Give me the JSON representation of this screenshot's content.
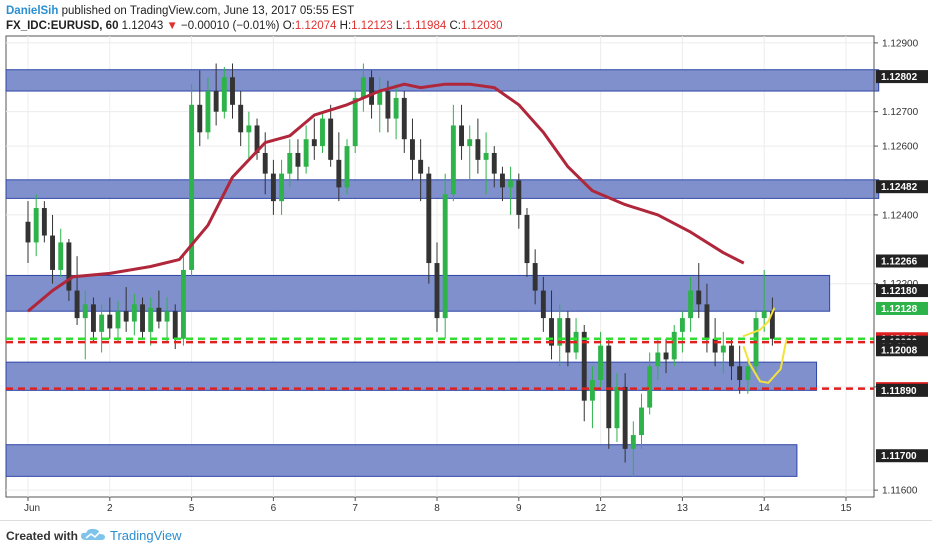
{
  "header": {
    "author": "DanielSih",
    "published": "published on TradingView.com, June 13, 2017 05:55 EST",
    "symbol": "FX_IDC:EURUSD, 60",
    "last": "1.12043",
    "change": "−0.00010 (−0.01%)",
    "o_label": "O:",
    "o_value": "1.12074",
    "h_label": "H:",
    "h_value": "1.12123",
    "l_label": "L:",
    "l_value": "1.11984",
    "c_label": "C:",
    "c_value": "1.12030"
  },
  "footer": {
    "created_with": "Created with",
    "brand": "TradingView"
  },
  "colors": {
    "zone_fill": "#7f90cc",
    "zone_stroke": "#2f46a8",
    "up_candle": "#2db34a",
    "down_candle": "#333333",
    "ma_line": "#b0263a",
    "green_line": "#33dd33",
    "red_line": "#e02020",
    "sketch": "#f3e23a"
  },
  "chart_data": {
    "type": "candlestick",
    "x_labels": [
      "Jun",
      "2",
      "5",
      "6",
      "7",
      "8",
      "9",
      "12",
      "13",
      "14",
      "15"
    ],
    "y_ticks": [
      "1.12900",
      "1.12700",
      "1.12600",
      "1.12400",
      "1.12200",
      "1.11900",
      "1.11600"
    ],
    "ylim": [
      1.1158,
      1.1292
    ],
    "price_tags": [
      {
        "value": 1.12802,
        "label": "1.12802",
        "bg": "#222222",
        "fg": "#ffffff"
      },
      {
        "value": 1.12482,
        "label": "1.12482",
        "bg": "#222222",
        "fg": "#ffffff"
      },
      {
        "value": 1.12266,
        "label": "1.12266",
        "bg": "#222222",
        "fg": "#ffffff"
      },
      {
        "value": 1.1218,
        "label": "1.12180",
        "bg": "#222222",
        "fg": "#ffffff"
      },
      {
        "value": 1.12128,
        "label": "1.12128",
        "bg": "#2db34a",
        "fg": "#ffffff"
      },
      {
        "value": 1.1204,
        "label": "1.12040",
        "bg": "#e02020",
        "fg": "#ffffff"
      },
      {
        "value": 1.1203,
        "label": "1.12030",
        "bg": "#222222",
        "fg": "#ffffff"
      },
      {
        "value": 1.12018,
        "label": "04:48",
        "bg": "#222222",
        "fg": "#ffffff"
      },
      {
        "value": 1.12008,
        "label": "1.12008",
        "bg": "#222222",
        "fg": "#ffffff"
      },
      {
        "value": 1.11895,
        "label": "1.11895",
        "bg": "#e02020",
        "fg": "#ffffff"
      },
      {
        "value": 1.1189,
        "label": "1.11890",
        "bg": "#222222",
        "fg": "#ffffff"
      },
      {
        "value": 1.117,
        "label": "1.11700",
        "bg": "#222222",
        "fg": "#ffffff"
      }
    ],
    "zones": [
      {
        "from": 1.1276,
        "to": 1.12822,
        "x_end_day": 10.4
      },
      {
        "from": 1.12448,
        "to": 1.12502,
        "x_end_day": 10.4
      },
      {
        "from": 1.1212,
        "to": 1.12224,
        "x_end_day": 9.8
      },
      {
        "from": 1.1189,
        "to": 1.11972,
        "x_end_day": 9.64
      },
      {
        "from": 1.1164,
        "to": 1.11732,
        "x_end_day": 9.4
      }
    ],
    "green_dashed_level": 1.1204,
    "red_dashed_levels": [
      1.1203,
      1.11895
    ],
    "ma_points": [
      [
        0,
        1.1212
      ],
      [
        0.3,
        1.1218
      ],
      [
        0.55,
        1.1222
      ],
      [
        1.0,
        1.1223
      ],
      [
        1.5,
        1.1225
      ],
      [
        1.85,
        1.1227
      ],
      [
        2.2,
        1.1237
      ],
      [
        2.5,
        1.1251
      ],
      [
        2.9,
        1.1261
      ],
      [
        3.2,
        1.1263
      ],
      [
        3.5,
        1.1269
      ],
      [
        3.9,
        1.1272
      ],
      [
        4.3,
        1.1276
      ],
      [
        4.6,
        1.1278
      ],
      [
        4.8,
        1.1277
      ],
      [
        5.1,
        1.1278
      ],
      [
        5.4,
        1.1278
      ],
      [
        5.7,
        1.1277
      ],
      [
        6.0,
        1.1272
      ],
      [
        6.3,
        1.1264
      ],
      [
        6.6,
        1.1254
      ],
      [
        6.9,
        1.1247
      ],
      [
        7.3,
        1.1243
      ],
      [
        7.7,
        1.124
      ],
      [
        8.1,
        1.1235
      ],
      [
        8.5,
        1.1229
      ],
      [
        8.75,
        1.1226
      ]
    ],
    "candles": [
      {
        "d": 0.0,
        "o": 1.1238,
        "h": 1.1244,
        "l": 1.1226,
        "c": 1.1232
      },
      {
        "d": 0.1,
        "o": 1.1232,
        "h": 1.1246,
        "l": 1.1228,
        "c": 1.1242
      },
      {
        "d": 0.2,
        "o": 1.1242,
        "h": 1.1244,
        "l": 1.1232,
        "c": 1.1234
      },
      {
        "d": 0.3,
        "o": 1.1234,
        "h": 1.124,
        "l": 1.122,
        "c": 1.1224
      },
      {
        "d": 0.4,
        "o": 1.1224,
        "h": 1.1236,
        "l": 1.1222,
        "c": 1.1232
      },
      {
        "d": 0.5,
        "o": 1.1232,
        "h": 1.1233,
        "l": 1.1215,
        "c": 1.1218
      },
      {
        "d": 0.6,
        "o": 1.1218,
        "h": 1.1228,
        "l": 1.1208,
        "c": 1.121
      },
      {
        "d": 0.7,
        "o": 1.121,
        "h": 1.1218,
        "l": 1.1198,
        "c": 1.1214
      },
      {
        "d": 0.8,
        "o": 1.1214,
        "h": 1.1216,
        "l": 1.1203,
        "c": 1.1206
      },
      {
        "d": 0.9,
        "o": 1.1206,
        "h": 1.1214,
        "l": 1.12,
        "c": 1.1211
      },
      {
        "d": 1.0,
        "o": 1.1211,
        "h": 1.1216,
        "l": 1.1204,
        "c": 1.1207
      },
      {
        "d": 1.1,
        "o": 1.1207,
        "h": 1.1215,
        "l": 1.1203,
        "c": 1.1212
      },
      {
        "d": 1.2,
        "o": 1.1212,
        "h": 1.1219,
        "l": 1.1206,
        "c": 1.1209
      },
      {
        "d": 1.3,
        "o": 1.1209,
        "h": 1.1217,
        "l": 1.1205,
        "c": 1.1214
      },
      {
        "d": 1.4,
        "o": 1.1214,
        "h": 1.1216,
        "l": 1.1204,
        "c": 1.1206
      },
      {
        "d": 1.5,
        "o": 1.1206,
        "h": 1.1216,
        "l": 1.1202,
        "c": 1.1213
      },
      {
        "d": 1.6,
        "o": 1.1213,
        "h": 1.1218,
        "l": 1.1207,
        "c": 1.1209
      },
      {
        "d": 1.7,
        "o": 1.1209,
        "h": 1.1216,
        "l": 1.1203,
        "c": 1.1212
      },
      {
        "d": 1.8,
        "o": 1.1212,
        "h": 1.1214,
        "l": 1.1201,
        "c": 1.1204
      },
      {
        "d": 1.9,
        "o": 1.1204,
        "h": 1.1228,
        "l": 1.1202,
        "c": 1.1224
      },
      {
        "d": 2.0,
        "o": 1.1224,
        "h": 1.1278,
        "l": 1.1222,
        "c": 1.1272
      },
      {
        "d": 2.1,
        "o": 1.1272,
        "h": 1.1282,
        "l": 1.126,
        "c": 1.1264
      },
      {
        "d": 2.2,
        "o": 1.1264,
        "h": 1.128,
        "l": 1.1262,
        "c": 1.1276
      },
      {
        "d": 2.3,
        "o": 1.1276,
        "h": 1.1284,
        "l": 1.1266,
        "c": 1.127
      },
      {
        "d": 2.4,
        "o": 1.127,
        "h": 1.1283,
        "l": 1.1268,
        "c": 1.128
      },
      {
        "d": 2.5,
        "o": 1.128,
        "h": 1.1284,
        "l": 1.1268,
        "c": 1.1272
      },
      {
        "d": 2.6,
        "o": 1.1272,
        "h": 1.1276,
        "l": 1.126,
        "c": 1.1264
      },
      {
        "d": 2.7,
        "o": 1.1264,
        "h": 1.127,
        "l": 1.1256,
        "c": 1.1266
      },
      {
        "d": 2.8,
        "o": 1.1266,
        "h": 1.1268,
        "l": 1.1256,
        "c": 1.1258
      },
      {
        "d": 2.9,
        "o": 1.1258,
        "h": 1.1264,
        "l": 1.1246,
        "c": 1.1252
      },
      {
        "d": 3.0,
        "o": 1.1252,
        "h": 1.1256,
        "l": 1.124,
        "c": 1.1244
      },
      {
        "d": 3.1,
        "o": 1.1244,
        "h": 1.1256,
        "l": 1.124,
        "c": 1.1252
      },
      {
        "d": 3.2,
        "o": 1.1252,
        "h": 1.1262,
        "l": 1.1248,
        "c": 1.1258
      },
      {
        "d": 3.3,
        "o": 1.1258,
        "h": 1.1262,
        "l": 1.125,
        "c": 1.1254
      },
      {
        "d": 3.4,
        "o": 1.1254,
        "h": 1.1266,
        "l": 1.1252,
        "c": 1.1262
      },
      {
        "d": 3.5,
        "o": 1.1262,
        "h": 1.1268,
        "l": 1.1256,
        "c": 1.126
      },
      {
        "d": 3.6,
        "o": 1.126,
        "h": 1.127,
        "l": 1.1258,
        "c": 1.1268
      },
      {
        "d": 3.7,
        "o": 1.1268,
        "h": 1.1272,
        "l": 1.1254,
        "c": 1.1256
      },
      {
        "d": 3.8,
        "o": 1.1256,
        "h": 1.1264,
        "l": 1.1244,
        "c": 1.1248
      },
      {
        "d": 3.9,
        "o": 1.1248,
        "h": 1.1262,
        "l": 1.1246,
        "c": 1.126
      },
      {
        "d": 4.0,
        "o": 1.126,
        "h": 1.1276,
        "l": 1.1258,
        "c": 1.1274
      },
      {
        "d": 4.1,
        "o": 1.1274,
        "h": 1.1284,
        "l": 1.127,
        "c": 1.128
      },
      {
        "d": 4.2,
        "o": 1.128,
        "h": 1.1282,
        "l": 1.1268,
        "c": 1.1272
      },
      {
        "d": 4.3,
        "o": 1.1272,
        "h": 1.128,
        "l": 1.1264,
        "c": 1.1276
      },
      {
        "d": 4.4,
        "o": 1.1276,
        "h": 1.1279,
        "l": 1.1264,
        "c": 1.1268
      },
      {
        "d": 4.5,
        "o": 1.1268,
        "h": 1.1278,
        "l": 1.1262,
        "c": 1.1274
      },
      {
        "d": 4.6,
        "o": 1.1274,
        "h": 1.1276,
        "l": 1.1258,
        "c": 1.1262
      },
      {
        "d": 4.7,
        "o": 1.1262,
        "h": 1.1268,
        "l": 1.125,
        "c": 1.1256
      },
      {
        "d": 4.8,
        "o": 1.1256,
        "h": 1.1262,
        "l": 1.1244,
        "c": 1.1252
      },
      {
        "d": 4.9,
        "o": 1.1252,
        "h": 1.1254,
        "l": 1.122,
        "c": 1.1226
      },
      {
        "d": 5.0,
        "o": 1.1226,
        "h": 1.1232,
        "l": 1.1206,
        "c": 1.121
      },
      {
        "d": 5.1,
        "o": 1.121,
        "h": 1.1252,
        "l": 1.1204,
        "c": 1.1246
      },
      {
        "d": 5.2,
        "o": 1.1246,
        "h": 1.1272,
        "l": 1.1244,
        "c": 1.1266
      },
      {
        "d": 5.3,
        "o": 1.1266,
        "h": 1.1272,
        "l": 1.1256,
        "c": 1.126
      },
      {
        "d": 5.4,
        "o": 1.126,
        "h": 1.1266,
        "l": 1.125,
        "c": 1.1262
      },
      {
        "d": 5.5,
        "o": 1.1262,
        "h": 1.1268,
        "l": 1.1252,
        "c": 1.1256
      },
      {
        "d": 5.6,
        "o": 1.1256,
        "h": 1.1264,
        "l": 1.1246,
        "c": 1.1258
      },
      {
        "d": 5.7,
        "o": 1.1258,
        "h": 1.126,
        "l": 1.1248,
        "c": 1.1252
      },
      {
        "d": 5.8,
        "o": 1.1252,
        "h": 1.1254,
        "l": 1.1244,
        "c": 1.1248
      },
      {
        "d": 5.9,
        "o": 1.1248,
        "h": 1.1254,
        "l": 1.124,
        "c": 1.125
      },
      {
        "d": 6.0,
        "o": 1.125,
        "h": 1.1252,
        "l": 1.1236,
        "c": 1.124
      },
      {
        "d": 6.1,
        "o": 1.124,
        "h": 1.1242,
        "l": 1.1222,
        "c": 1.1226
      },
      {
        "d": 6.2,
        "o": 1.1226,
        "h": 1.123,
        "l": 1.1214,
        "c": 1.1218
      },
      {
        "d": 6.3,
        "o": 1.1218,
        "h": 1.1222,
        "l": 1.1206,
        "c": 1.121
      },
      {
        "d": 6.4,
        "o": 1.121,
        "h": 1.1218,
        "l": 1.1198,
        "c": 1.1202
      },
      {
        "d": 6.5,
        "o": 1.1202,
        "h": 1.1214,
        "l": 1.1196,
        "c": 1.121
      },
      {
        "d": 6.6,
        "o": 1.121,
        "h": 1.1212,
        "l": 1.1196,
        "c": 1.12
      },
      {
        "d": 6.7,
        "o": 1.12,
        "h": 1.121,
        "l": 1.1198,
        "c": 1.1206
      },
      {
        "d": 6.8,
        "o": 1.1206,
        "h": 1.1208,
        "l": 1.118,
        "c": 1.1186
      },
      {
        "d": 6.9,
        "o": 1.1186,
        "h": 1.1196,
        "l": 1.1178,
        "c": 1.1192
      },
      {
        "d": 7.0,
        "o": 1.1192,
        "h": 1.1206,
        "l": 1.119,
        "c": 1.1202
      },
      {
        "d": 7.1,
        "o": 1.1202,
        "h": 1.1204,
        "l": 1.1172,
        "c": 1.1178
      },
      {
        "d": 7.2,
        "o": 1.1178,
        "h": 1.1194,
        "l": 1.1174,
        "c": 1.119
      },
      {
        "d": 7.3,
        "o": 1.119,
        "h": 1.1194,
        "l": 1.1168,
        "c": 1.1172
      },
      {
        "d": 7.4,
        "o": 1.1172,
        "h": 1.118,
        "l": 1.1164,
        "c": 1.1176
      },
      {
        "d": 7.5,
        "o": 1.1176,
        "h": 1.1188,
        "l": 1.1172,
        "c": 1.1184
      },
      {
        "d": 7.6,
        "o": 1.1184,
        "h": 1.12,
        "l": 1.1182,
        "c": 1.1196
      },
      {
        "d": 7.7,
        "o": 1.1196,
        "h": 1.1204,
        "l": 1.1192,
        "c": 1.12
      },
      {
        "d": 7.8,
        "o": 1.12,
        "h": 1.1204,
        "l": 1.1194,
        "c": 1.1198
      },
      {
        "d": 7.9,
        "o": 1.1198,
        "h": 1.1208,
        "l": 1.1196,
        "c": 1.1206
      },
      {
        "d": 8.0,
        "o": 1.1206,
        "h": 1.1212,
        "l": 1.12,
        "c": 1.121
      },
      {
        "d": 8.1,
        "o": 1.121,
        "h": 1.1222,
        "l": 1.1206,
        "c": 1.1218
      },
      {
        "d": 8.2,
        "o": 1.1218,
        "h": 1.1226,
        "l": 1.121,
        "c": 1.1214
      },
      {
        "d": 8.3,
        "o": 1.1214,
        "h": 1.122,
        "l": 1.12,
        "c": 1.1204
      },
      {
        "d": 8.4,
        "o": 1.1204,
        "h": 1.121,
        "l": 1.1196,
        "c": 1.12
      },
      {
        "d": 8.5,
        "o": 1.12,
        "h": 1.1206,
        "l": 1.1194,
        "c": 1.1202
      },
      {
        "d": 8.6,
        "o": 1.1202,
        "h": 1.1204,
        "l": 1.1192,
        "c": 1.1196
      },
      {
        "d": 8.7,
        "o": 1.1196,
        "h": 1.1202,
        "l": 1.1188,
        "c": 1.1192
      },
      {
        "d": 8.8,
        "o": 1.1192,
        "h": 1.1198,
        "l": 1.1188,
        "c": 1.1196
      },
      {
        "d": 8.9,
        "o": 1.1196,
        "h": 1.1212,
        "l": 1.1194,
        "c": 1.121
      },
      {
        "d": 9.0,
        "o": 1.121,
        "h": 1.1224,
        "l": 1.1206,
        "c": 1.1212
      },
      {
        "d": 9.1,
        "o": 1.1212,
        "h": 1.1216,
        "l": 1.1202,
        "c": 1.1204
      }
    ],
    "sketch_paths": [
      [
        [
          8.75,
          1.12048
        ],
        [
          8.95,
          1.12066
        ],
        [
          9.05,
          1.1209
        ],
        [
          9.12,
          1.12128
        ]
      ],
      [
        [
          8.75,
          1.12016
        ],
        [
          8.82,
          1.11968
        ],
        [
          8.95,
          1.11916
        ],
        [
          9.05,
          1.11912
        ],
        [
          9.2,
          1.11952
        ],
        [
          9.27,
          1.12036
        ]
      ]
    ]
  }
}
